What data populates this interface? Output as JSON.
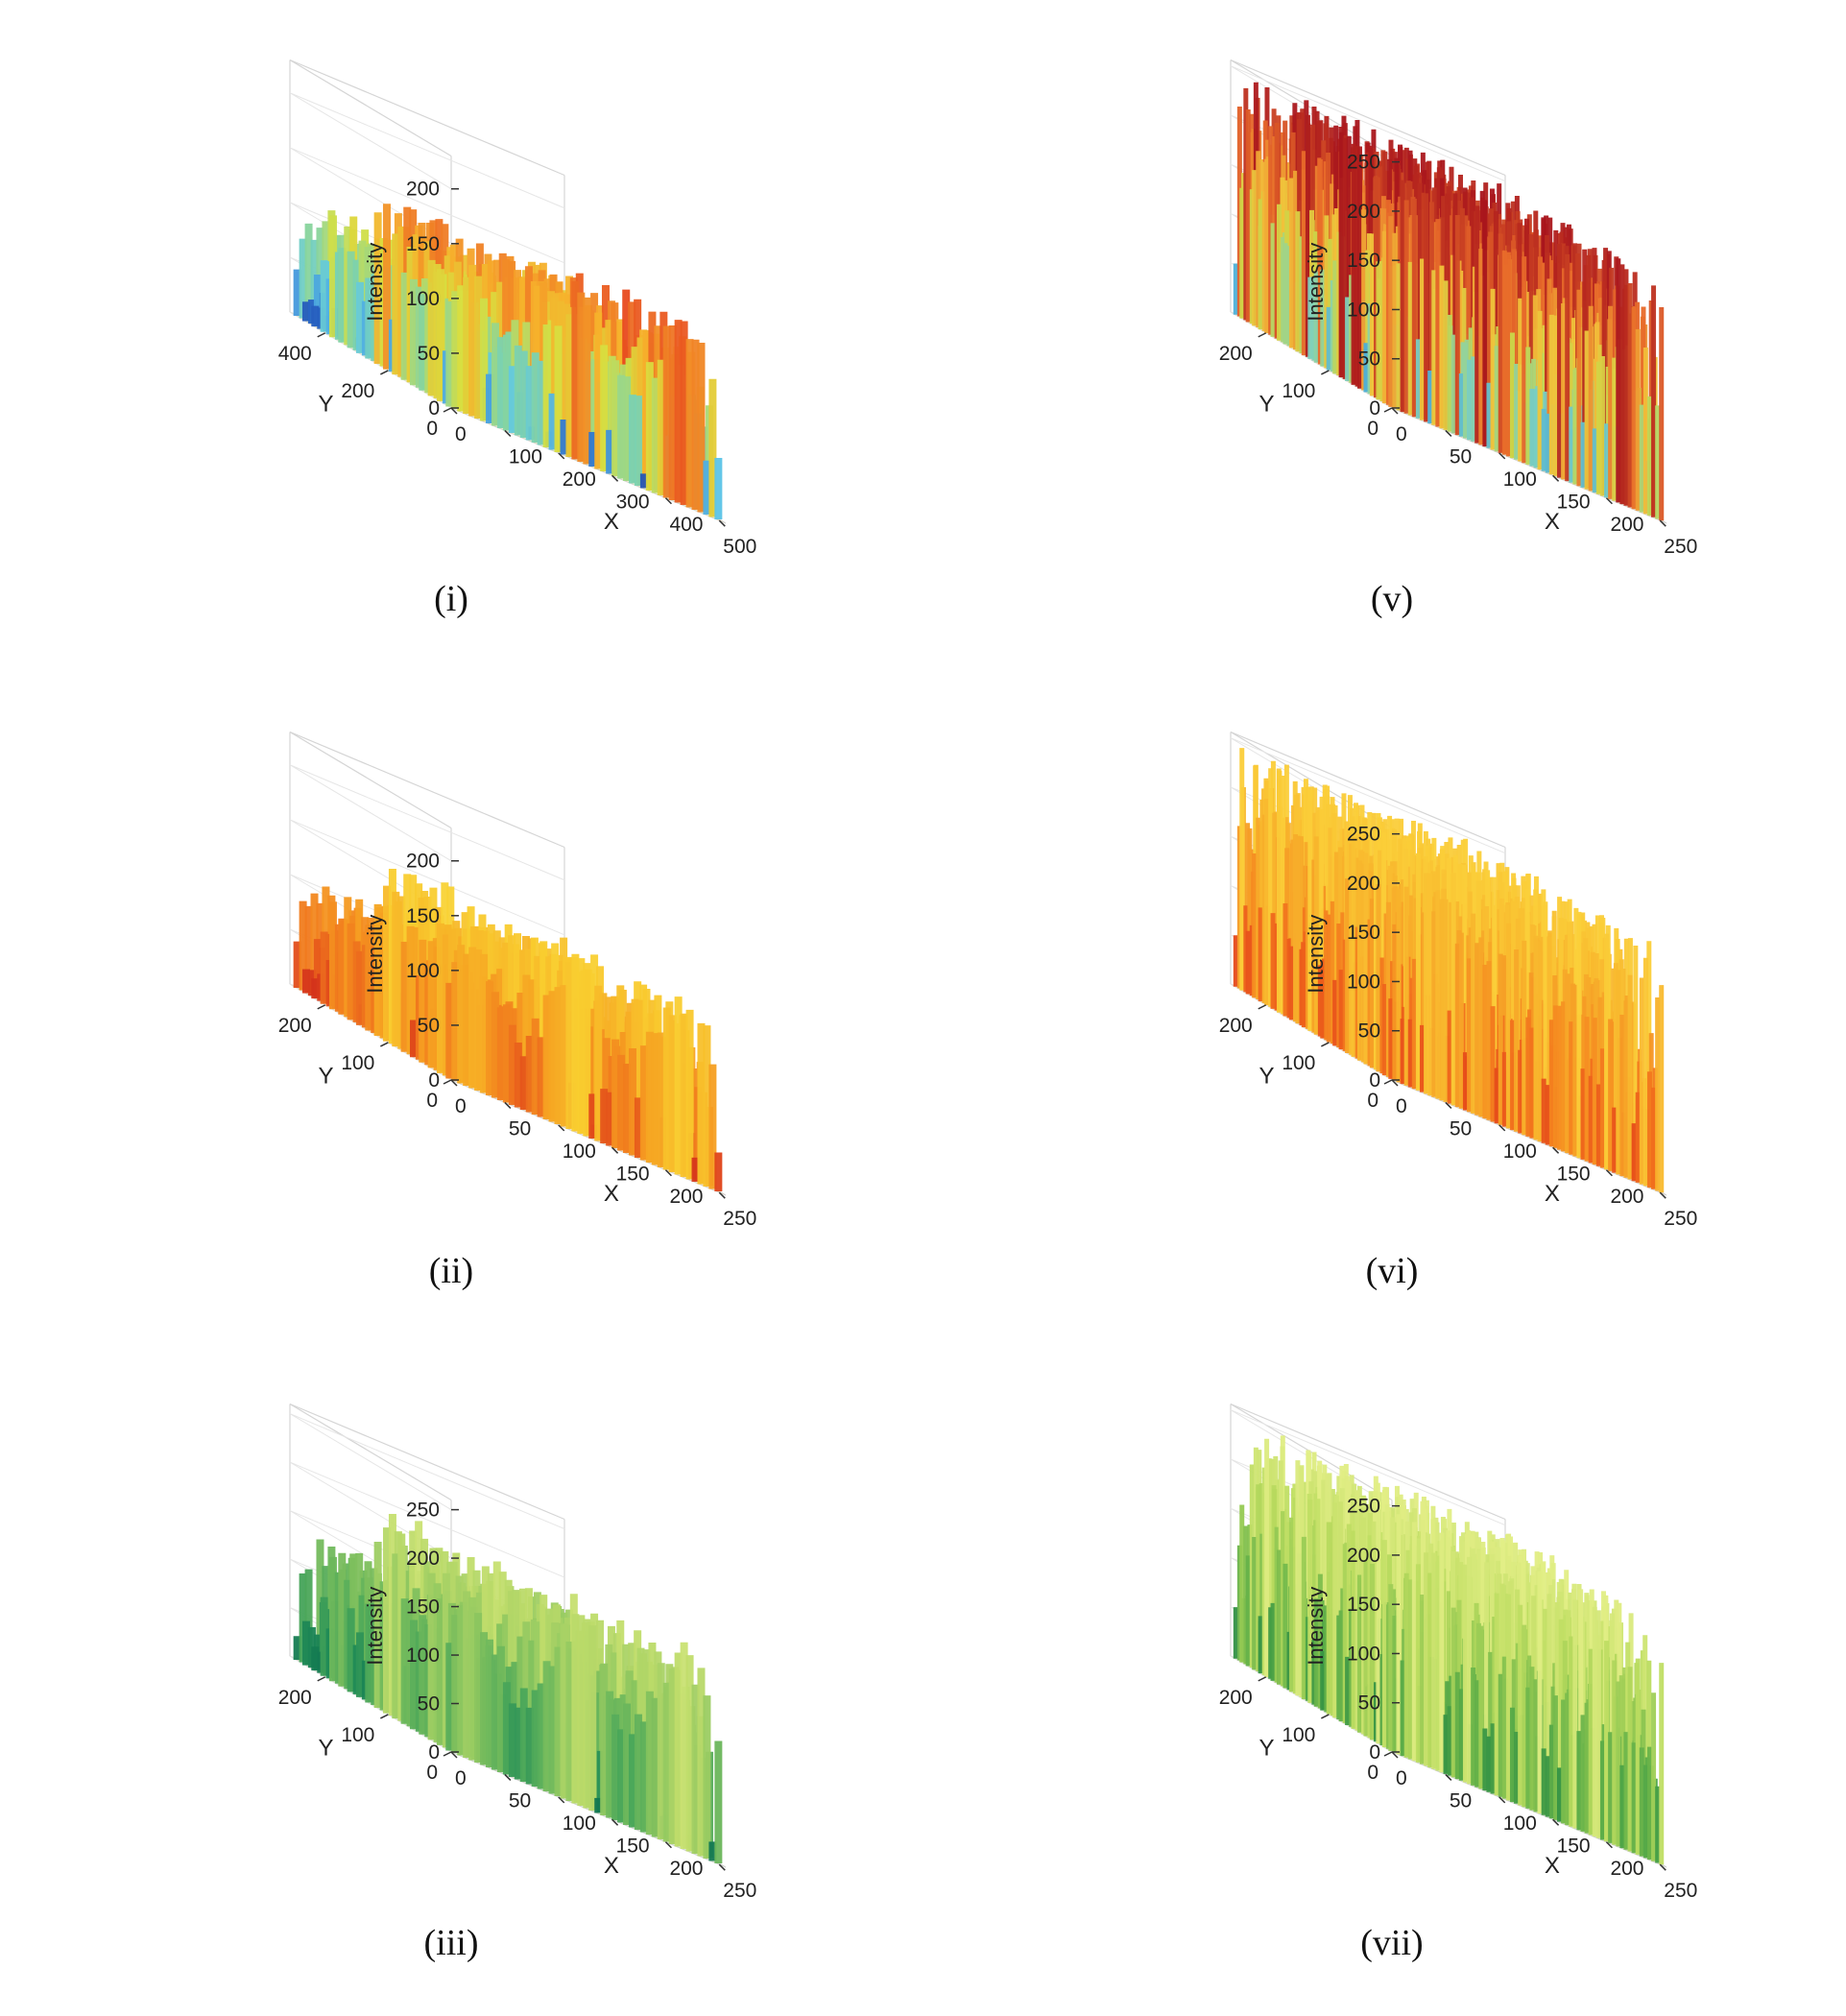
{
  "chart_data": [
    {
      "type": "surface",
      "caption": "(i)",
      "xlabel": "X",
      "ylabel": "Y",
      "zlabel": "Intensity",
      "xlim": [
        0,
        512
      ],
      "ylim": [
        0,
        512
      ],
      "zlim": [
        0,
        230
      ],
      "xticks": [
        0,
        100,
        200,
        300,
        400,
        500
      ],
      "yticks": [
        0,
        200,
        400
      ],
      "zticks": [
        0,
        50,
        100,
        150,
        200
      ],
      "colormap": [
        "#1f3f9e",
        "#2b6fd0",
        "#5ec7e8",
        "#7fd3a8",
        "#d7df40",
        "#f6b12b",
        "#e84a1f",
        "#b0121c"
      ],
      "texture": "smooth",
      "description_level": "original color image surface with contour base"
    },
    {
      "type": "surface",
      "caption": "(ii)",
      "xlabel": "X",
      "ylabel": "Y",
      "zlabel": "Intensity",
      "xlim": [
        0,
        256
      ],
      "ylim": [
        0,
        256
      ],
      "zlim": [
        0,
        230
      ],
      "xticks": [
        0,
        50,
        100,
        150,
        200,
        250
      ],
      "yticks": [
        0,
        100,
        200
      ],
      "zticks": [
        0,
        50,
        100,
        150,
        200
      ],
      "colormap": [
        "#c8201c",
        "#e24a1a",
        "#f07a1e",
        "#f6a623",
        "#f9cd2f",
        "#fbe64a"
      ],
      "texture": "smooth"
    },
    {
      "type": "surface",
      "caption": "(iii)",
      "xlabel": "X",
      "ylabel": "Y",
      "zlabel": "Intensity",
      "xlim": [
        0,
        256
      ],
      "ylim": [
        0,
        256
      ],
      "zlim": [
        0,
        260
      ],
      "xticks": [
        0,
        50,
        100,
        150,
        200,
        250
      ],
      "yticks": [
        0,
        100,
        200
      ],
      "zticks": [
        0,
        50,
        100,
        150,
        200,
        250
      ],
      "colormap": [
        "#0b6e4f",
        "#1f8a56",
        "#4da85a",
        "#86c35e",
        "#bfdc6a",
        "#e6ef8c"
      ],
      "texture": "smooth"
    },
    {
      "type": "surface",
      "caption": "(v)",
      "xlabel": "X",
      "ylabel": "Y",
      "zlabel": "Intensity",
      "xlim": [
        0,
        256
      ],
      "ylim": [
        0,
        256
      ],
      "zlim": [
        0,
        256
      ],
      "xticks": [
        0,
        50,
        100,
        150,
        200,
        250
      ],
      "yticks": [
        0,
        100,
        200
      ],
      "zticks": [
        0,
        50,
        100,
        150,
        200,
        250
      ],
      "colormap": [
        "#2a5cc8",
        "#3fa7e0",
        "#7cd0c0",
        "#c8d84a",
        "#f2c23a",
        "#e86a2a",
        "#a8141c"
      ],
      "texture": "noise"
    },
    {
      "type": "surface",
      "caption": "(vi)",
      "xlabel": "X",
      "ylabel": "Y",
      "zlabel": "Intensity",
      "xlim": [
        0,
        256
      ],
      "ylim": [
        0,
        256
      ],
      "zlim": [
        0,
        256
      ],
      "xticks": [
        0,
        50,
        100,
        150,
        200,
        250
      ],
      "yticks": [
        0,
        100,
        200
      ],
      "zticks": [
        0,
        50,
        100,
        150,
        200,
        250
      ],
      "colormap": [
        "#d12a16",
        "#e5481a",
        "#f06a1c",
        "#f59022",
        "#f8b42c",
        "#fbd03a"
      ],
      "texture": "noise"
    },
    {
      "type": "surface",
      "caption": "(vii)",
      "xlabel": "X",
      "ylabel": "Y",
      "zlabel": "Intensity",
      "xlim": [
        0,
        256
      ],
      "ylim": [
        0,
        256
      ],
      "zlim": [
        0,
        256
      ],
      "xticks": [
        0,
        50,
        100,
        150,
        200,
        250
      ],
      "yticks": [
        0,
        100,
        200
      ],
      "zticks": [
        0,
        50,
        100,
        150,
        200,
        250
      ],
      "colormap": [
        "#126e3e",
        "#2f8f44",
        "#5aac48",
        "#8cc550",
        "#bcdc60",
        "#e2ee86"
      ],
      "texture": "noise"
    }
  ]
}
